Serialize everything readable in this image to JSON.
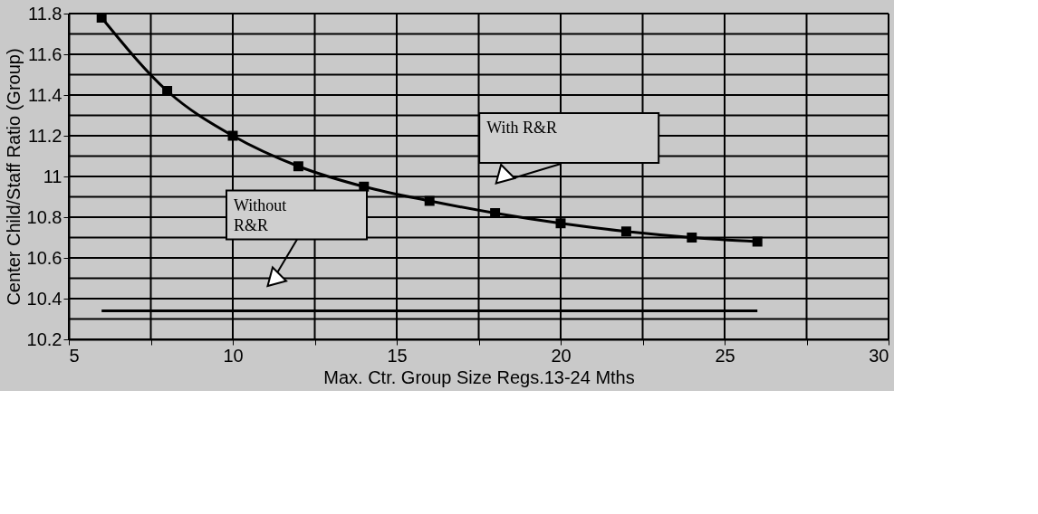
{
  "chart_data": {
    "type": "line",
    "xlabel": "Max. Ctr. Group Size Regs.13-24 Mths",
    "ylabel": "Center Child/Staff Ratio (Group)",
    "x": [
      6,
      8,
      10,
      12,
      14,
      16,
      18,
      20,
      22,
      24,
      26
    ],
    "series": [
      {
        "name": "With R&R",
        "color": "#000000",
        "marker": "square",
        "values": [
          11.78,
          11.42,
          11.2,
          11.05,
          10.95,
          10.88,
          10.82,
          10.77,
          10.73,
          10.7,
          10.68
        ]
      },
      {
        "name": "Without R&R",
        "color": "#000000",
        "marker": "none",
        "values": [
          10.34,
          10.34,
          10.34,
          10.34,
          10.34,
          10.34,
          10.34,
          10.34,
          10.34,
          10.34,
          10.34
        ]
      }
    ],
    "xlim": [
      5,
      30
    ],
    "ylim": [
      10.2,
      11.8
    ],
    "xticks": [
      5,
      {
        "value": 7.5,
        "label": null
      },
      10,
      {
        "value": 12.5,
        "label": null
      },
      15,
      {
        "value": 17.5,
        "label": null
      },
      20,
      {
        "value": 22.5,
        "label": null
      },
      25,
      {
        "value": 27.5,
        "label": null
      },
      30
    ],
    "yticks": [
      10.2,
      {
        "value": 10.3,
        "label": null
      },
      10.4,
      {
        "value": 10.5,
        "label": null
      },
      10.6,
      {
        "value": 10.7,
        "label": null
      },
      10.8,
      {
        "value": 10.9,
        "label": null
      },
      11,
      {
        "value": 11.1,
        "label": null
      },
      11.2,
      {
        "value": 11.3,
        "label": null
      },
      11.4,
      {
        "value": 11.5,
        "label": null
      },
      11.6,
      {
        "value": 11.7,
        "label": null
      },
      11.8
    ],
    "grid": true,
    "line_style": "solid"
  }
}
